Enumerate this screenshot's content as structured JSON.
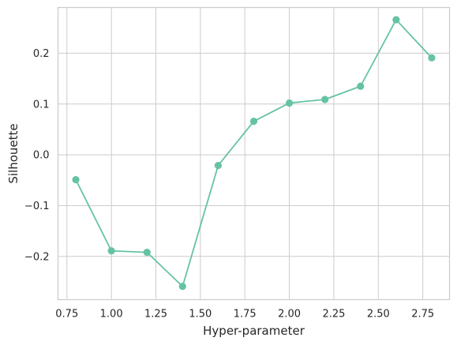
{
  "chart_data": {
    "type": "line",
    "title": "",
    "xlabel": "Hyper-parameter",
    "ylabel": "Silhouette",
    "xlim": [
      0.7,
      2.9
    ],
    "ylim": [
      -0.285,
      0.29
    ],
    "x_ticks": [
      0.75,
      1.0,
      1.25,
      1.5,
      1.75,
      2.0,
      2.25,
      2.5,
      2.75
    ],
    "x_tick_labels": [
      "0.75",
      "1.00",
      "1.25",
      "1.50",
      "1.75",
      "2.00",
      "2.25",
      "2.50",
      "2.75"
    ],
    "y_ticks": [
      -0.2,
      -0.1,
      0.0,
      0.1,
      0.2
    ],
    "y_tick_labels": [
      "−0.2",
      "−0.1",
      "0.0",
      "0.1",
      "0.2"
    ],
    "grid": true,
    "legend": "none",
    "series": [
      {
        "color": "#66c2a5",
        "x": [
          0.8,
          1.0,
          1.2,
          1.4,
          1.6,
          1.8,
          2.0,
          2.2,
          2.4,
          2.6,
          2.8
        ],
        "y": [
          -0.049,
          -0.189,
          -0.192,
          -0.259,
          -0.021,
          0.066,
          0.102,
          0.109,
          0.135,
          0.266,
          0.191
        ]
      }
    ]
  }
}
